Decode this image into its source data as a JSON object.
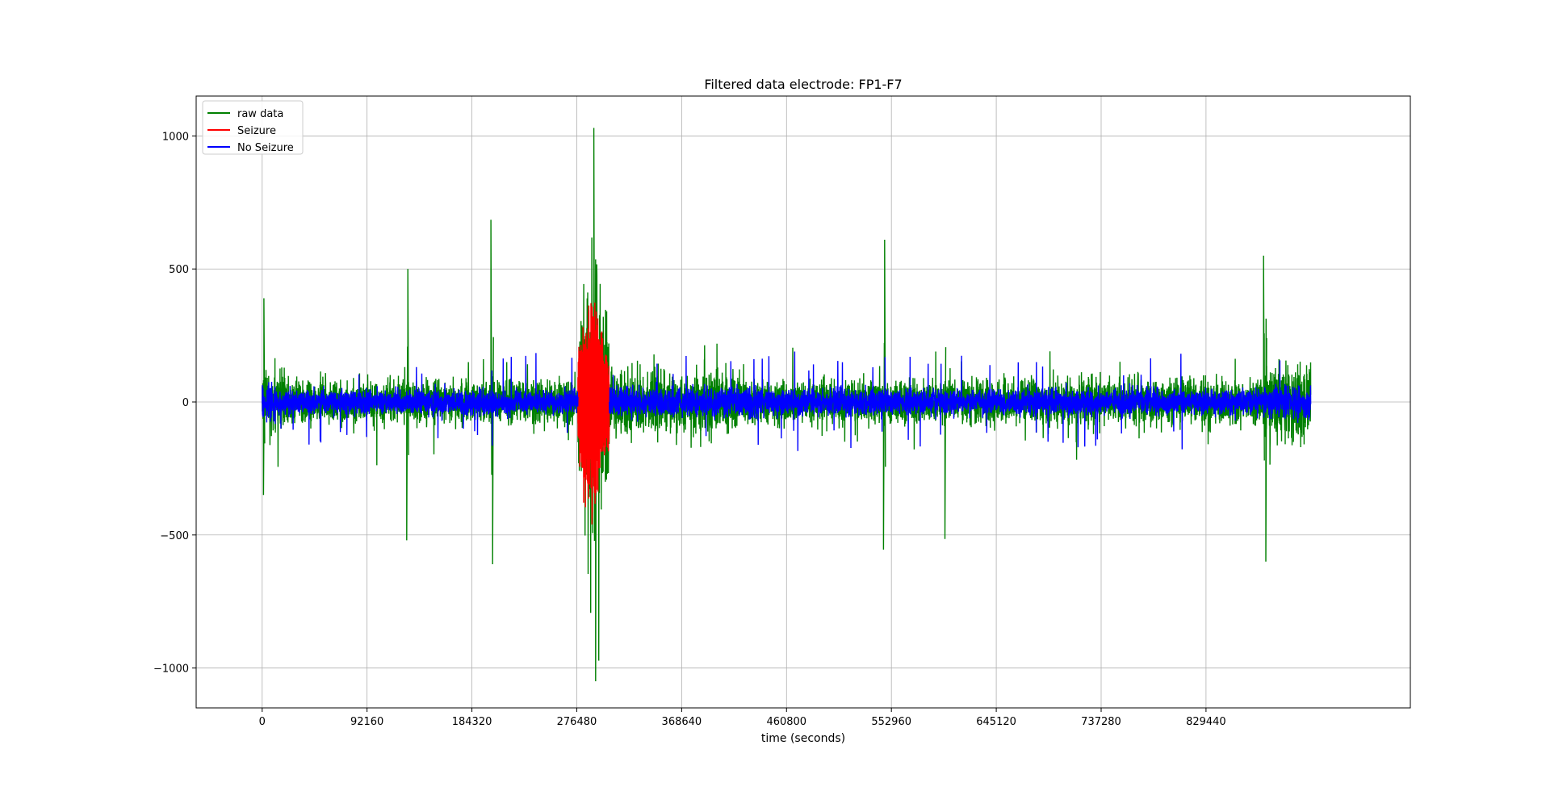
{
  "chart_data": {
    "type": "line",
    "title": "Filtered data electrode: FP1-F7",
    "xlabel": "time (seconds)",
    "ylabel": "",
    "xlim": [
      -58000,
      1009000
    ],
    "ylim": [
      -1150,
      1150
    ],
    "xticks": [
      0,
      92160,
      184320,
      276480,
      368640,
      460800,
      552960,
      645120,
      737280,
      829440
    ],
    "xtick_labels": [
      "0",
      "92160",
      "184320",
      "276480",
      "368640",
      "460800",
      "552960",
      "645120",
      "737280",
      "829440"
    ],
    "yticks": [
      -1000,
      -500,
      0,
      500,
      1000
    ],
    "ytick_labels": [
      "−1000",
      "−500",
      "0",
      "500",
      "1000"
    ],
    "grid": true,
    "legend_position": "upper-left",
    "x_range": [
      0,
      921600
    ],
    "seizure_window": [
      277500,
      305000
    ],
    "series": [
      {
        "name": "raw data",
        "color": "#008000",
        "description": "raw EEG trace, typical amplitude about ±150, large peaks to 1030 and -1050 near 290000",
        "notable_peaks": [
          {
            "x": 1500,
            "y": 390
          },
          {
            "x": 1200,
            "y": -350
          },
          {
            "x": 128000,
            "y": 500
          },
          {
            "x": 127000,
            "y": -520
          },
          {
            "x": 201000,
            "y": 685
          },
          {
            "x": 202500,
            "y": -610
          },
          {
            "x": 291500,
            "y": 1030
          },
          {
            "x": 293000,
            "y": -1050
          },
          {
            "x": 547000,
            "y": 610
          },
          {
            "x": 546000,
            "y": -555
          },
          {
            "x": 600000,
            "y": -515
          },
          {
            "x": 880000,
            "y": 550
          },
          {
            "x": 882000,
            "y": -600
          }
        ]
      },
      {
        "name": "Seizure",
        "color": "#ff0000",
        "description": "seizure segment between about 277500 and 305000, amplitude about ±420"
      },
      {
        "name": "No Seizure",
        "color": "#0000ff",
        "description": "filtered non-seizure signal, amplitude about ±60 with occasional spikes to about ±150"
      }
    ]
  }
}
